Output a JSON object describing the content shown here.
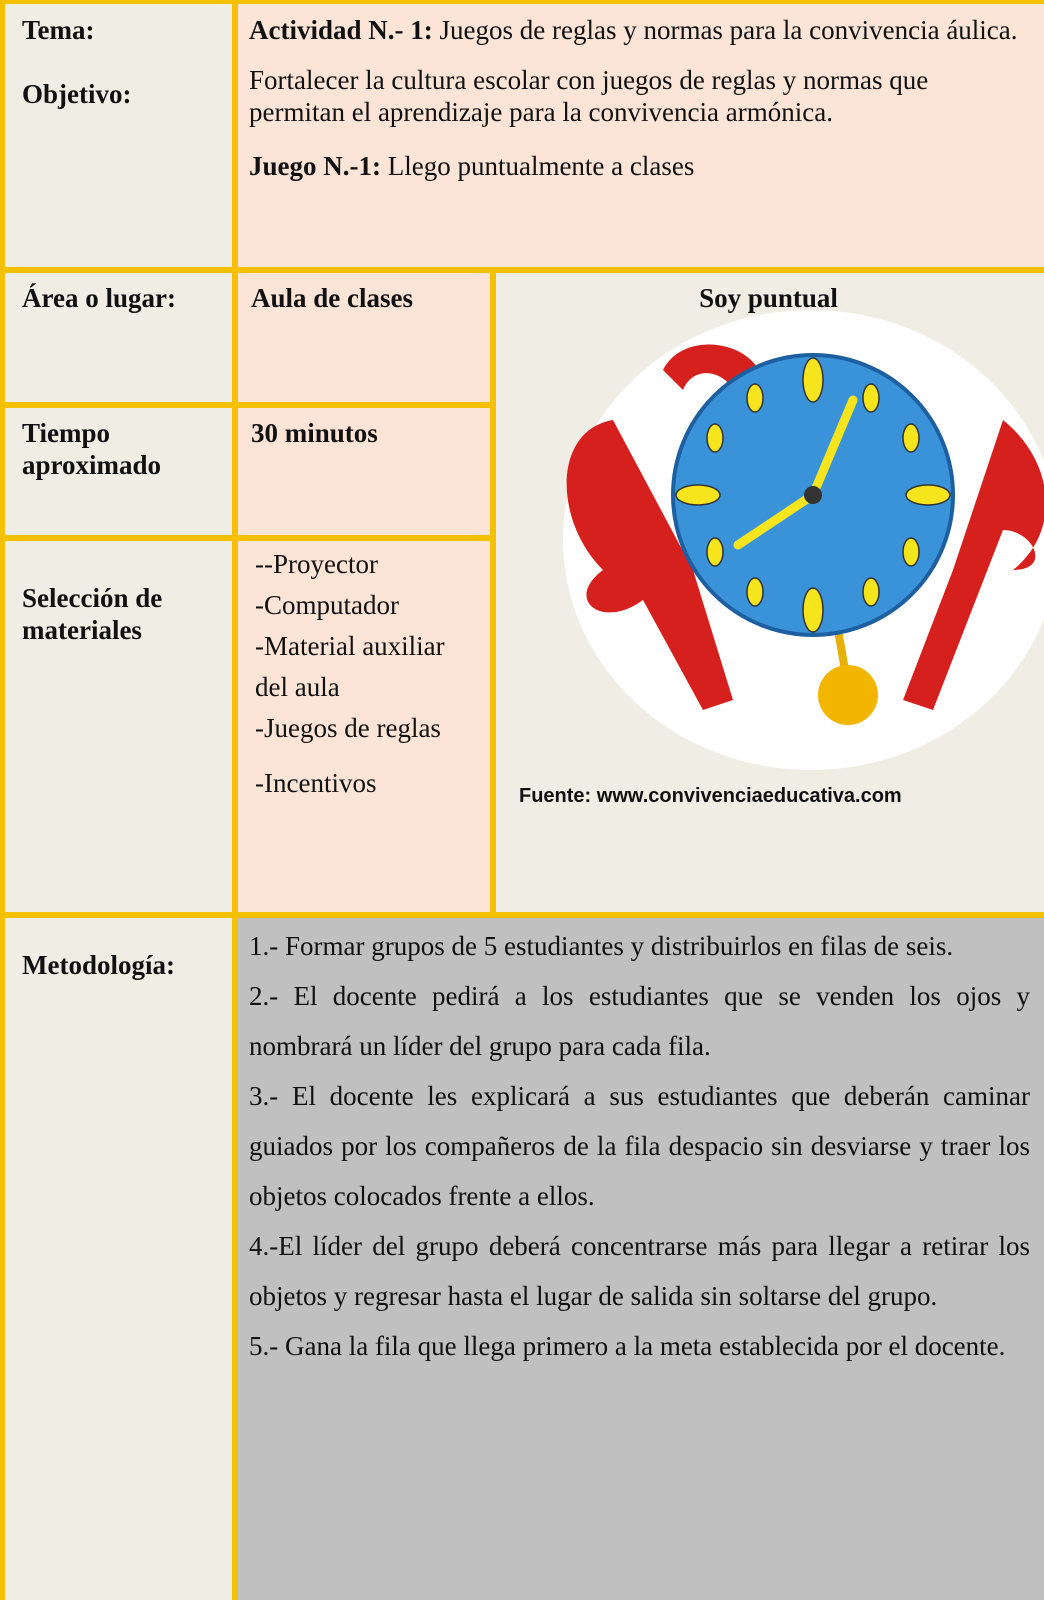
{
  "header": {
    "tema_label": "Tema:",
    "objetivo_label": "Objetivo:",
    "activity_label": "Actividad N.- 1:",
    "activity_text": "Juegos de reglas y normas para la convivencia áulica.",
    "objective_text": "Fortalecer la cultura escolar con juegos de reglas y normas que permitan el aprendizaje para la convivencia armónica.",
    "game_label": "Juego N.-1:",
    "game_text": "Llego puntualmente a clases"
  },
  "rows": [
    {
      "label": "Área o lugar:",
      "value": "Aula de clases"
    },
    {
      "label": "Tiempo aproximado",
      "value": "30 minutos"
    }
  ],
  "materials": {
    "label": "Selección de materiales",
    "items": [
      "--Proyector",
      "-Computador",
      "-Material auxiliar del aula",
      "-Juegos de reglas",
      "-Incentivos"
    ]
  },
  "image": {
    "title": "Soy puntual",
    "source": "Fuente: www.convivenciaeducativa.com"
  },
  "methodology": {
    "label": "Metodología:",
    "steps": [
      "1.- Formar grupos de 5 estudiantes y distribuirlos en filas de seis.",
      "2.- El docente pedirá a los estudiantes que se venden los ojos y nombrará un líder del grupo para cada fila.",
      "3.- El docente les explicará a sus estudiantes que deberán caminar guiados por los compañeros de la fila despacio sin desviarse y traer los objetos colocados frente a ellos.",
      "4.-El líder del grupo deberá concentrarse más para llegar a retirar los objetos y regresar hasta el lugar de salida sin soltarse del grupo.",
      "5.- Gana la fila que llega primero a la meta establecida por el docente."
    ]
  }
}
